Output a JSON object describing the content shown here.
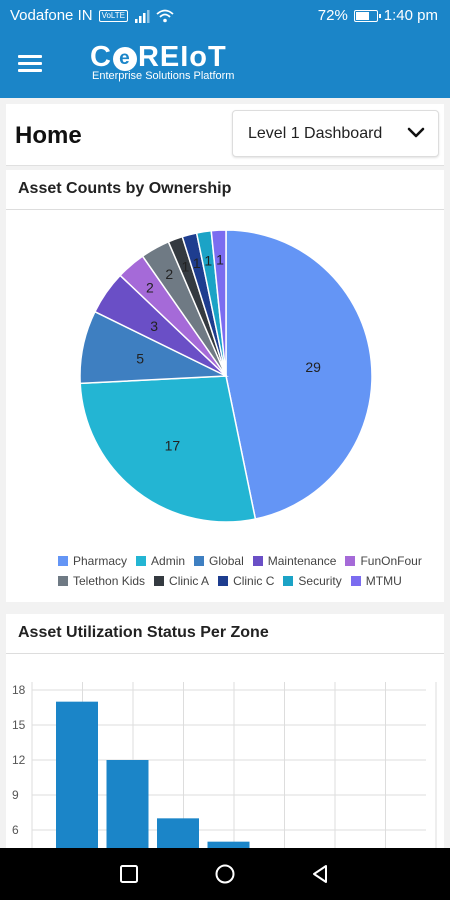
{
  "status_bar": {
    "carrier": "Vodafone IN",
    "volte": "VoLTE",
    "battery": "72%",
    "battery_level": 0.72,
    "time": "1:40 pm",
    "icons": [
      "signal-icon",
      "wifi-icon",
      "battery-icon"
    ]
  },
  "app_bar": {
    "logo_pre": "C",
    "logo_mark": "e",
    "logo_post": "REIoT",
    "logo_subtitle": "Enterprise Solutions Platform",
    "menu_icon": "hamburger-menu-icon"
  },
  "home": {
    "title": "Home",
    "dashboard_select": "Level 1 Dashboard"
  },
  "pie_card": {
    "title": "Asset Counts by Ownership"
  },
  "bar_card": {
    "title": "Asset Utilization Status Per Zone"
  },
  "nav_bar": {
    "icons": [
      "recent-apps-icon",
      "home-icon",
      "back-icon"
    ]
  },
  "chart_data": [
    {
      "type": "pie",
      "title": "Asset Counts by Ownership",
      "legend_position": "bottom",
      "slices": [
        {
          "name": "Pharmacy",
          "value": 29,
          "color": "#6495f5"
        },
        {
          "name": "Admin",
          "value": 17,
          "color": "#23b5d3"
        },
        {
          "name": "Global",
          "value": 5,
          "color": "#3e7fc1"
        },
        {
          "name": "Maintenance",
          "value": 3,
          "color": "#6a4fc6"
        },
        {
          "name": "FunOnFour",
          "value": 2,
          "color": "#a56ad8"
        },
        {
          "name": "Telethon Kids",
          "value": 2,
          "color": "#6f7a84"
        },
        {
          "name": "Clinic A",
          "value": 1,
          "color": "#343a40"
        },
        {
          "name": "Clinic C",
          "value": 1,
          "color": "#1e3d8f"
        },
        {
          "name": "Security",
          "value": 1,
          "color": "#1ba3c6"
        },
        {
          "name": "MTMU",
          "value": 1,
          "color": "#7b6cf0"
        }
      ]
    },
    {
      "type": "bar",
      "title": "Asset Utilization Status Per Zone",
      "y_ticks": [
        "18",
        "15",
        "12",
        "9",
        "6"
      ],
      "ylim": [
        0,
        18
      ],
      "grid": true,
      "values": [
        17,
        12,
        7,
        5
      ],
      "color": "#1b85c8"
    }
  ]
}
